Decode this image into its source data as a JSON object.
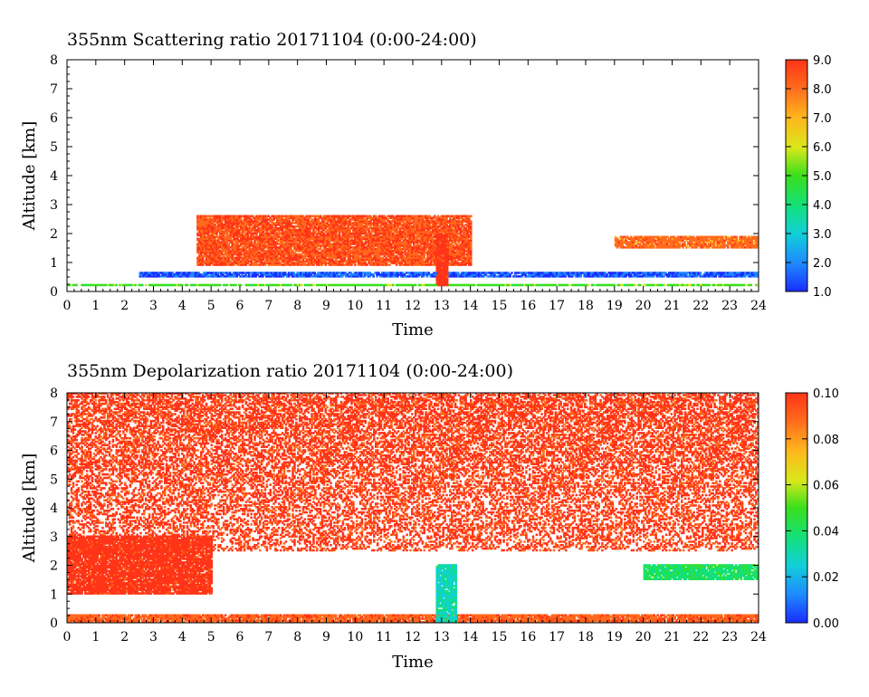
{
  "chart_data": [
    {
      "type": "heatmap",
      "title": "355nm Scattering ratio  20171104 (0:00-24:00)",
      "xlabel": "Time",
      "ylabel": "Altitude [km]",
      "xlim": [
        0,
        24
      ],
      "ylim": [
        0,
        8
      ],
      "x_ticks": [
        "0",
        "1",
        "2",
        "3",
        "4",
        "5",
        "6",
        "7",
        "8",
        "9",
        "10",
        "11",
        "12",
        "13",
        "14",
        "15",
        "16",
        "17",
        "18",
        "19",
        "20",
        "21",
        "22",
        "23",
        "24"
      ],
      "y_ticks": [
        "0",
        "1",
        "2",
        "3",
        "4",
        "5",
        "6",
        "7",
        "8"
      ],
      "colorbar": {
        "range": [
          1.0,
          9.0
        ],
        "ticks": [
          "1.0",
          "2.0",
          "3.0",
          "4.0",
          "5.0",
          "6.0",
          "7.0",
          "8.0",
          "9.0"
        ]
      },
      "features": [
        {
          "description": "persistent low layer (boundary layer top)",
          "time": [
            2.5,
            24
          ],
          "altitude_km": [
            0.5,
            0.65
          ],
          "value": 1.5
        },
        {
          "description": "near-surface line",
          "time": [
            0,
            24
          ],
          "altitude_km": [
            0.2,
            0.25
          ],
          "value": 5.0
        },
        {
          "description": "broken cloud elements",
          "time": [
            4.5,
            14.0
          ],
          "altitude_km": [
            0.9,
            2.6
          ],
          "value": 8.5
        },
        {
          "description": "dense cloud column",
          "time": [
            12.8,
            13.2
          ],
          "altitude_km": [
            0.2,
            2.0
          ],
          "value": 9.0
        },
        {
          "description": "elevated thin layer",
          "time": [
            19.0,
            24
          ],
          "altitude_km": [
            1.5,
            1.9
          ],
          "value": 8.0
        }
      ]
    },
    {
      "type": "heatmap",
      "title": "355nm Depolarization ratio  20171104 (0:00-24:00)",
      "xlabel": "Time",
      "ylabel": "Altitude [km]",
      "xlim": [
        0,
        24
      ],
      "ylim": [
        0,
        8
      ],
      "x_ticks": [
        "0",
        "1",
        "2",
        "3",
        "4",
        "5",
        "6",
        "7",
        "8",
        "9",
        "10",
        "11",
        "12",
        "13",
        "14",
        "15",
        "16",
        "17",
        "18",
        "19",
        "20",
        "21",
        "22",
        "23",
        "24"
      ],
      "y_ticks": [
        "0",
        "1",
        "2",
        "3",
        "4",
        "5",
        "6",
        "7",
        "8"
      ],
      "colorbar": {
        "range": [
          0.0,
          0.1
        ],
        "ticks": [
          "0.00",
          "0.02",
          "0.04",
          "0.06",
          "0.08",
          "0.10"
        ]
      },
      "features": [
        {
          "description": "noisy high-depolarization region aloft",
          "time": [
            0,
            24
          ],
          "altitude_km": [
            2.5,
            8.0
          ],
          "value": 0.1
        },
        {
          "description": "dust/aerosol layer",
          "time": [
            0,
            5.0
          ],
          "altitude_km": [
            1.0,
            3.0
          ],
          "value": 0.1
        },
        {
          "description": "near-surface layer",
          "time": [
            0,
            24
          ],
          "altitude_km": [
            0.0,
            0.3
          ],
          "value": 0.09
        },
        {
          "description": "cloud with low depolarization",
          "time": [
            12.8,
            13.5
          ],
          "altitude_km": [
            0.0,
            2.0
          ],
          "value": 0.03
        },
        {
          "description": "elevated layer",
          "time": [
            20.0,
            24
          ],
          "altitude_km": [
            1.5,
            2.0
          ],
          "value": 0.04
        }
      ]
    }
  ]
}
